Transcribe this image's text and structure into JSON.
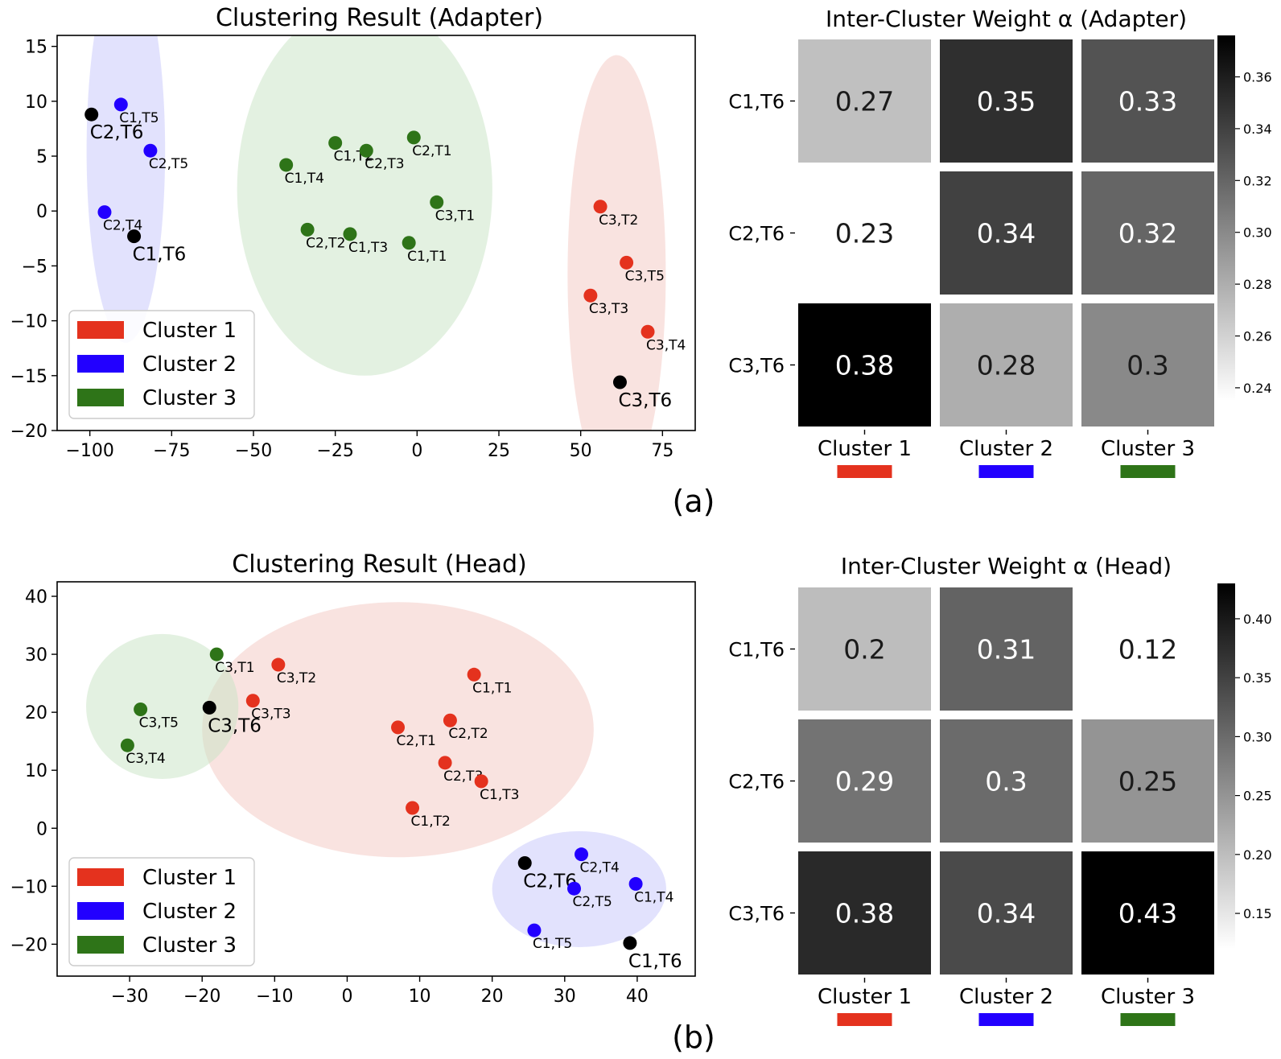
{
  "panel_labels": [
    "(a)",
    "(b)"
  ],
  "legend_names": [
    "Cluster 1",
    "Cluster 2",
    "Cluster 3"
  ],
  "colors": {
    "cluster1": "#e4321e",
    "cluster2": "#2200ff",
    "cluster3": "#2e7418",
    "marker_t6": "#000000",
    "ellipse1": "#f4c7c2",
    "ellipse2": "#c6c6fb",
    "ellipse3": "#c7e3c3"
  },
  "chart_data": [
    {
      "type": "scatter",
      "title": "Clustering Result (Adapter)",
      "xlabel": "",
      "ylabel": "",
      "xlim": [
        -110,
        85
      ],
      "ylim": [
        -20,
        16
      ],
      "xticks": [
        -100,
        -75,
        -50,
        -25,
        0,
        25,
        50,
        75
      ],
      "yticks": [
        -20,
        -15,
        -10,
        -5,
        0,
        5,
        10,
        15
      ],
      "tick_labels_x": [
        "−100",
        "−75",
        "−50",
        "−25",
        "0",
        "25",
        "50",
        "75"
      ],
      "tick_labels_y": [
        "−20",
        "−15",
        "−10",
        "−5",
        "0",
        "5",
        "10",
        "15"
      ],
      "legend": [
        "Cluster 1",
        "Cluster 2",
        "Cluster 3"
      ],
      "legend_position": "lower-left",
      "regions": [
        {
          "cluster": 1,
          "cx": 61,
          "cy": -5.8,
          "rx": 15,
          "ry": 20
        },
        {
          "cluster": 2,
          "cx": -89,
          "cy": 5.5,
          "rx": 12,
          "ry": 17.5
        },
        {
          "cluster": 3,
          "cx": -16,
          "cy": 2,
          "rx": 39,
          "ry": 17
        }
      ],
      "points": [
        {
          "label": "C1,T5",
          "x": -90.5,
          "y": 9.7,
          "cluster": 2
        },
        {
          "label": "C2,T6",
          "x": -99.5,
          "y": 8.8,
          "cluster": 2,
          "highlight": true
        },
        {
          "label": "C2,T5",
          "x": -81.5,
          "y": 5.5,
          "cluster": 2
        },
        {
          "label": "C2,T4",
          "x": -95.5,
          "y": -0.1,
          "cluster": 2
        },
        {
          "label": "C1,T6",
          "x": -86.5,
          "y": -2.3,
          "cluster": 2,
          "highlight": true
        },
        {
          "label": "C1,T4",
          "x": -40,
          "y": 4.2,
          "cluster": 3
        },
        {
          "label": "C1,T2",
          "x": -25,
          "y": 6.2,
          "cluster": 3
        },
        {
          "label": "C2,T3",
          "x": -15.5,
          "y": 5.5,
          "cluster": 3
        },
        {
          "label": "C2,T1",
          "x": -1,
          "y": 6.7,
          "cluster": 3
        },
        {
          "label": "C3,T1",
          "x": 6,
          "y": 0.8,
          "cluster": 3
        },
        {
          "label": "C2,T2",
          "x": -33.5,
          "y": -1.7,
          "cluster": 3
        },
        {
          "label": "C1,T3",
          "x": -20.5,
          "y": -2.1,
          "cluster": 3
        },
        {
          "label": "C1,T1",
          "x": -2.5,
          "y": -2.9,
          "cluster": 3
        },
        {
          "label": "C3,T2",
          "x": 56,
          "y": 0.4,
          "cluster": 1
        },
        {
          "label": "C3,T5",
          "x": 64,
          "y": -4.7,
          "cluster": 1
        },
        {
          "label": "C3,T3",
          "x": 53,
          "y": -7.7,
          "cluster": 1
        },
        {
          "label": "C3,T4",
          "x": 70.5,
          "y": -11,
          "cluster": 1
        },
        {
          "label": "C3,T6",
          "x": 62,
          "y": -15.6,
          "cluster": 1,
          "highlight": true
        }
      ]
    },
    {
      "type": "heatmap",
      "title": "Inter-Cluster Weight α (Adapter)",
      "rows": [
        "C1,T6",
        "C2,T6",
        "C3,T6"
      ],
      "cols": [
        "Cluster 1",
        "Cluster 2",
        "Cluster 3"
      ],
      "values": [
        [
          0.27,
          0.35,
          0.33
        ],
        [
          0.23,
          0.34,
          0.32
        ],
        [
          0.38,
          0.28,
          0.3
        ]
      ],
      "labels": [
        [
          "0.27",
          "0.35",
          "0.33"
        ],
        [
          "0.23",
          "0.34",
          "0.32"
        ],
        [
          "0.38",
          "0.28",
          "0.3"
        ]
      ],
      "colorbar": {
        "min": 0.235,
        "max": 0.376,
        "ticks": [
          0.24,
          0.26,
          0.28,
          0.3,
          0.32,
          0.34,
          0.36
        ],
        "tick_labels": [
          "0.24",
          "0.26",
          "0.28",
          "0.30",
          "0.32",
          "0.34",
          "0.36"
        ]
      }
    },
    {
      "type": "scatter",
      "title": "Clustering Result (Head)",
      "xlabel": "",
      "ylabel": "",
      "xlim": [
        -40,
        48
      ],
      "ylim": [
        -25.5,
        42.5
      ],
      "xticks": [
        -30,
        -20,
        -10,
        0,
        10,
        20,
        30,
        40
      ],
      "yticks": [
        -20,
        -10,
        0,
        10,
        20,
        30,
        40
      ],
      "tick_labels_x": [
        "−30",
        "−20",
        "−10",
        "0",
        "10",
        "20",
        "30",
        "40"
      ],
      "tick_labels_y": [
        "−20",
        "−10",
        "0",
        "10",
        "20",
        "30",
        "40"
      ],
      "legend": [
        "Cluster 1",
        "Cluster 2",
        "Cluster 3"
      ],
      "legend_position": "lower-left",
      "regions": [
        {
          "cluster": 1,
          "cx": 7,
          "cy": 17,
          "rx": 27,
          "ry": 22
        },
        {
          "cluster": 2,
          "cx": 32,
          "cy": -10.5,
          "rx": 12,
          "ry": 10
        },
        {
          "cluster": 3,
          "cx": -25.5,
          "cy": 21,
          "rx": 10.5,
          "ry": 12.5
        }
      ],
      "points": [
        {
          "label": "C3,T1",
          "x": -18,
          "y": 30,
          "cluster": 3
        },
        {
          "label": "C3,T5",
          "x": -28.5,
          "y": 20.5,
          "cluster": 3
        },
        {
          "label": "C3,T4",
          "x": -30.3,
          "y": 14.3,
          "cluster": 3
        },
        {
          "label": "C3,T6",
          "x": -19,
          "y": 20.8,
          "cluster": 3,
          "highlight": true
        },
        {
          "label": "C3,T2",
          "x": -9.5,
          "y": 28.2,
          "cluster": 1
        },
        {
          "label": "C3,T3",
          "x": -13,
          "y": 22,
          "cluster": 1
        },
        {
          "label": "C1,T1",
          "x": 17.5,
          "y": 26.5,
          "cluster": 1
        },
        {
          "label": "C2,T1",
          "x": 7,
          "y": 17.4,
          "cluster": 1
        },
        {
          "label": "C2,T2",
          "x": 14.2,
          "y": 18.6,
          "cluster": 1
        },
        {
          "label": "C2,T3",
          "x": 13.5,
          "y": 11.3,
          "cluster": 1
        },
        {
          "label": "C1,T3",
          "x": 18.5,
          "y": 8.1,
          "cluster": 1
        },
        {
          "label": "C1,T2",
          "x": 9,
          "y": 3.5,
          "cluster": 1
        },
        {
          "label": "C2,T6",
          "x": 24.5,
          "y": -6,
          "cluster": 2,
          "highlight": true
        },
        {
          "label": "C2,T4",
          "x": 32.3,
          "y": -4.5,
          "cluster": 2
        },
        {
          "label": "C2,T5",
          "x": 31.3,
          "y": -10.4,
          "cluster": 2
        },
        {
          "label": "C1,T4",
          "x": 39.8,
          "y": -9.6,
          "cluster": 2
        },
        {
          "label": "C1,T5",
          "x": 25.8,
          "y": -17.6,
          "cluster": 2
        },
        {
          "label": "C1,T6",
          "x": 39,
          "y": -19.8,
          "cluster": 2,
          "highlight": true
        }
      ]
    },
    {
      "type": "heatmap",
      "title": "Inter-Cluster Weight α (Head)",
      "rows": [
        "C1,T6",
        "C2,T6",
        "C3,T6"
      ],
      "cols": [
        "Cluster 1",
        "Cluster 2",
        "Cluster 3"
      ],
      "values": [
        [
          0.2,
          0.31,
          0.12
        ],
        [
          0.29,
          0.3,
          0.25
        ],
        [
          0.38,
          0.34,
          0.43
        ]
      ],
      "labels": [
        [
          "0.2",
          "0.31",
          "0.12"
        ],
        [
          "0.29",
          "0.3",
          "0.25"
        ],
        [
          "0.38",
          "0.34",
          "0.43"
        ]
      ],
      "colorbar": {
        "min": 0.12,
        "max": 0.43,
        "ticks": [
          0.15,
          0.2,
          0.25,
          0.3,
          0.35,
          0.4
        ],
        "tick_labels": [
          "0.15",
          "0.20",
          "0.25",
          "0.30",
          "0.35",
          "0.40"
        ]
      }
    }
  ]
}
